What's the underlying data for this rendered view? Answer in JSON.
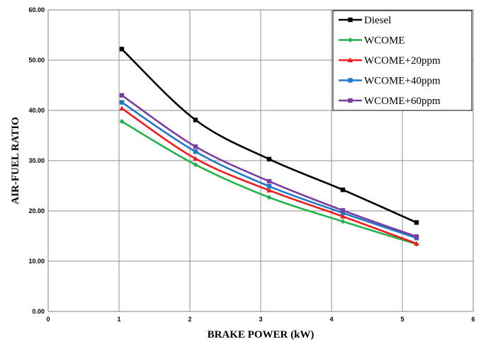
{
  "chart_data": {
    "type": "line",
    "title": "",
    "xlabel": "BRAKE POWER (kW)",
    "ylabel": "AIR-FUEL RATIO",
    "xlim": [
      0,
      6
    ],
    "ylim": [
      0,
      60
    ],
    "x_ticks": [
      "0",
      "1",
      "2",
      "3",
      "4",
      "5",
      "6"
    ],
    "y_ticks": [
      "0.00",
      "10.00",
      "20.00",
      "30.00",
      "40.00",
      "50.00",
      "60.00"
    ],
    "grid": true,
    "legend_position": "top-right",
    "x": [
      1.04,
      2.08,
      3.12,
      4.16,
      5.2
    ],
    "series": [
      {
        "name": "Diesel",
        "color": "#000000",
        "marker": "square",
        "values": [
          52.2,
          38.1,
          30.3,
          24.2,
          17.7
        ]
      },
      {
        "name": "WCOME",
        "color": "#21b24b",
        "marker": "diamond",
        "values": [
          37.8,
          29.2,
          22.7,
          17.9,
          13.4
        ]
      },
      {
        "name": "WCOME+20ppm",
        "color": "#ee1c1c",
        "marker": "triangle",
        "values": [
          40.4,
          30.4,
          24.1,
          18.9,
          13.5
        ]
      },
      {
        "name": "WCOME+40ppm",
        "color": "#1f78c8",
        "marker": "square",
        "values": [
          41.6,
          31.8,
          24.9,
          19.6,
          14.6
        ]
      },
      {
        "name": "WCOME+60ppm",
        "color": "#7a3ea0",
        "marker": "square",
        "values": [
          43.0,
          32.8,
          25.9,
          20.1,
          14.9
        ]
      }
    ]
  }
}
